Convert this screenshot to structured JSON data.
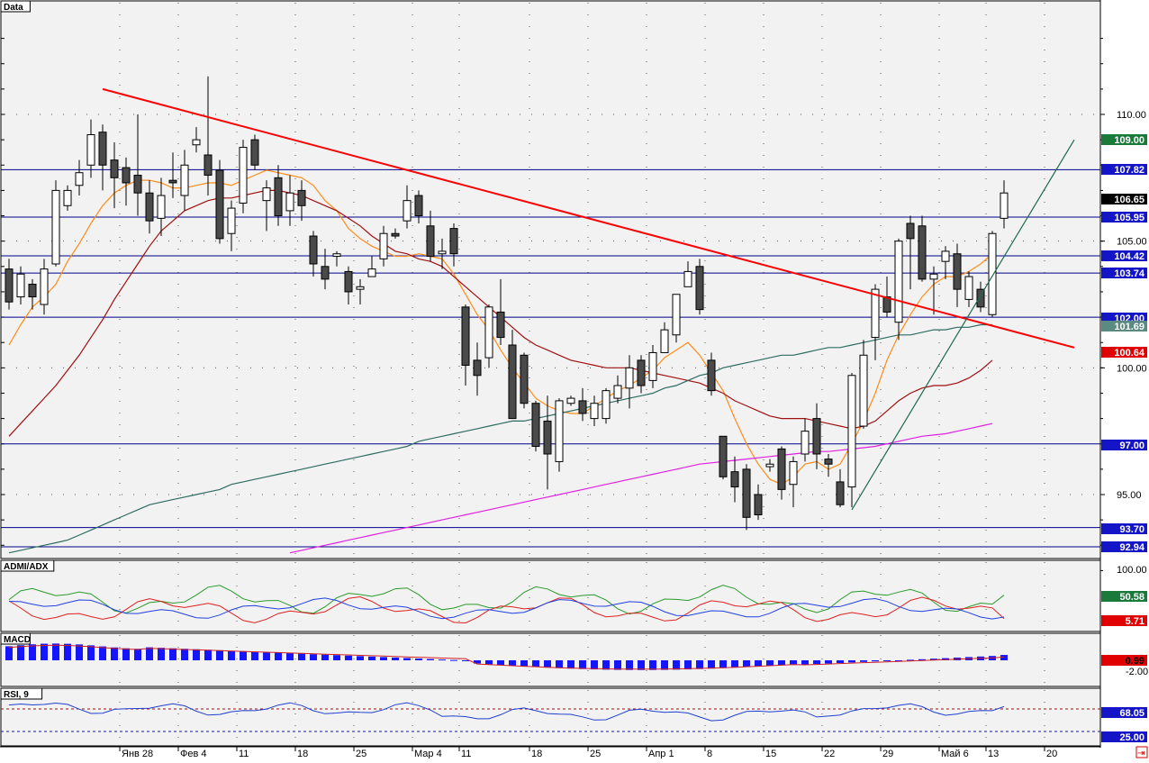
{
  "colors": {
    "plot_bg": "#f2f2f2",
    "frame": "#000000",
    "hline": "#00008b",
    "bull_fill": "#ffffff",
    "bear_fill": "#4a4a4a",
    "trend_red": "#ff0000",
    "trend_green": "#1e6b4a",
    "ma_fast": "#ff8c1a",
    "ma_mid": "#a01010",
    "ma_slow": "#2e6b62",
    "ma_long": "#e020e0",
    "dmi_plus": "#2a9a2a",
    "dmi_minus": "#e02020",
    "adx": "#2040e0",
    "macd_hist": "#1515ff",
    "macd_signal": "#d02020",
    "rsi_line": "#2040d0",
    "rsi_ref": "#c00000"
  },
  "panels": {
    "price_label": "Data",
    "dmi_label": "ADMI/ADX",
    "macd_label": "MACD",
    "rsi_label": "RSI, 9"
  },
  "x_labels": [
    "Янв 28",
    "Фев 4",
    "11",
    "18",
    "25",
    "Мар 4",
    "11",
    "18",
    "25",
    "Апр 1",
    "8",
    "15",
    "22",
    "29",
    "Май 6",
    "13",
    "20"
  ],
  "price_axis": {
    "ticks": [
      "110.00",
      "105.00",
      "100.00",
      "95.00"
    ],
    "hlines": [
      "107.82",
      "105.95",
      "104.42",
      "103.74",
      "102.00",
      "97.00",
      "93.70",
      "92.94"
    ]
  },
  "price_tags": [
    {
      "text": "109.00",
      "bg": "#1a7a3a",
      "fg": "#ffffff"
    },
    {
      "text": "107.82",
      "bg": "#1515c8",
      "fg": "#ffffff"
    },
    {
      "text": "106.65",
      "bg": "#000000",
      "fg": "#ffffff"
    },
    {
      "text": "105.95",
      "bg": "#1515c8",
      "fg": "#ffffff"
    },
    {
      "text": "104.42",
      "bg": "#1515c8",
      "fg": "#ffffff"
    },
    {
      "text": "103.74",
      "bg": "#1515c8",
      "fg": "#ffffff"
    },
    {
      "text": "102.00",
      "bg": "#1515c8",
      "fg": "#ffffff"
    },
    {
      "text": "101.69",
      "bg": "#5a8a80",
      "fg": "#ffffff"
    },
    {
      "text": "100.64",
      "bg": "#e00000",
      "fg": "#ffffff"
    },
    {
      "text": "97.00",
      "bg": "#1515c8",
      "fg": "#ffffff"
    },
    {
      "text": "93.70",
      "bg": "#1515c8",
      "fg": "#ffffff"
    },
    {
      "text": "92.94",
      "bg": "#1515c8",
      "fg": "#ffffff"
    }
  ],
  "dmi_axis": {
    "ticks": [
      "100.00"
    ],
    "tags": [
      {
        "text": "50.58",
        "bg": "#1a7a3a",
        "fg": "#ffffff"
      },
      {
        "text": "5.71",
        "bg": "#e00000",
        "fg": "#ffffff"
      }
    ]
  },
  "macd_axis": {
    "ticks": [
      "-2.00"
    ],
    "tags": [
      {
        "text": "0.99",
        "bg": "#e00000",
        "fg": "#000000"
      }
    ]
  },
  "rsi_axis": {
    "ticks": [],
    "tags": [
      {
        "text": "68.05",
        "bg": "#1515c8",
        "fg": "#ffffff"
      },
      {
        "text": "25.00",
        "bg": "#1515c8",
        "fg": "#ffffff"
      }
    ]
  },
  "chart_data": {
    "type": "candlestick",
    "title": "",
    "x_period": "daily",
    "x_axis_labels": [
      "Янв 28",
      "Фев 4",
      "11",
      "18",
      "25",
      "Мар 4",
      "11",
      "18",
      "25",
      "Апр 1",
      "8",
      "15",
      "22",
      "29",
      "Май 6",
      "13",
      "20"
    ],
    "ylim": [
      91.5,
      114.5
    ],
    "horizontal_levels": [
      107.82,
      105.95,
      104.42,
      103.74,
      102.0,
      97.0,
      93.7,
      92.94
    ],
    "candles": [
      [
        103.9,
        102.6,
        104.3,
        102.3
      ],
      [
        102.8,
        103.7,
        104.0,
        102.5
      ],
      [
        103.3,
        102.8,
        103.5,
        102.3
      ],
      [
        102.5,
        103.9,
        104.3,
        102.1
      ],
      [
        104.1,
        107.0,
        107.4,
        104.0
      ],
      [
        106.4,
        107.0,
        107.2,
        106.2
      ],
      [
        107.2,
        107.7,
        108.2,
        106.8
      ],
      [
        108.0,
        109.2,
        109.8,
        107.5
      ],
      [
        109.3,
        108.0,
        109.6,
        107.0
      ],
      [
        108.2,
        107.5,
        108.9,
        106.3
      ],
      [
        107.9,
        107.3,
        108.3,
        106.4
      ],
      [
        107.6,
        106.9,
        110.0,
        106.0
      ],
      [
        106.9,
        105.8,
        107.4,
        105.3
      ],
      [
        105.9,
        106.8,
        107.5,
        105.2
      ],
      [
        107.4,
        107.3,
        108.5,
        106.7
      ],
      [
        106.8,
        108.0,
        108.6,
        106.2
      ],
      [
        108.8,
        109.0,
        109.5,
        108.5
      ],
      [
        108.4,
        107.6,
        111.5,
        106.8
      ],
      [
        107.8,
        105.1,
        108.2,
        104.9
      ],
      [
        105.3,
        106.3,
        106.6,
        104.6
      ],
      [
        106.5,
        108.7,
        109.0,
        106.1
      ],
      [
        109.0,
        108.0,
        109.2,
        107.8
      ],
      [
        106.6,
        107.1,
        107.4,
        105.4
      ],
      [
        107.5,
        106.0,
        108.0,
        105.6
      ],
      [
        106.2,
        106.9,
        107.6,
        105.6
      ],
      [
        107.0,
        106.4,
        107.4,
        105.8
      ],
      [
        105.2,
        104.1,
        105.4,
        103.6
      ],
      [
        104.0,
        103.5,
        104.7,
        103.1
      ],
      [
        104.4,
        104.5,
        104.6,
        104.0
      ],
      [
        103.8,
        103.0,
        104.0,
        102.5
      ],
      [
        103.1,
        103.2,
        103.5,
        102.5
      ],
      [
        103.6,
        103.9,
        104.4,
        103.7
      ],
      [
        104.3,
        105.3,
        105.6,
        104.0
      ],
      [
        105.3,
        105.2,
        105.5,
        105.1
      ],
      [
        105.8,
        106.6,
        107.2,
        105.5
      ],
      [
        106.8,
        106.0,
        107.0,
        105.7
      ],
      [
        105.6,
        104.4,
        106.2,
        104.2
      ],
      [
        104.5,
        104.6,
        105.1,
        103.9
      ],
      [
        105.5,
        104.5,
        105.7,
        104.0
      ],
      [
        102.4,
        100.1,
        102.5,
        99.3
      ],
      [
        100.3,
        99.7,
        101.0,
        98.9
      ],
      [
        100.4,
        102.4,
        102.5,
        100.0
      ],
      [
        102.2,
        101.2,
        103.5,
        100.9
      ],
      [
        100.9,
        98.0,
        101.5,
        98.0
      ],
      [
        100.5,
        98.6,
        100.6,
        98.4
      ],
      [
        98.6,
        96.9,
        98.7,
        96.7
      ],
      [
        97.9,
        96.6,
        98.9,
        95.2
      ],
      [
        96.3,
        98.7,
        98.8,
        95.9
      ],
      [
        98.6,
        98.8,
        98.9,
        98.5
      ],
      [
        98.7,
        98.2,
        99.2,
        97.9
      ],
      [
        98.0,
        98.6,
        98.9,
        97.7
      ],
      [
        98.0,
        99.1,
        99.2,
        97.8
      ],
      [
        98.8,
        99.3,
        99.7,
        98.6
      ],
      [
        99.2,
        100.0,
        100.5,
        98.4
      ],
      [
        100.3,
        99.3,
        100.5,
        99.0
      ],
      [
        99.5,
        100.6,
        100.9,
        99.2
      ],
      [
        100.6,
        101.5,
        101.8,
        100.6
      ],
      [
        101.3,
        102.9,
        102.9,
        101.0
      ],
      [
        103.2,
        103.8,
        104.2,
        103.2
      ],
      [
        104.0,
        102.3,
        104.3,
        102.1
      ],
      [
        100.3,
        99.1,
        100.6,
        98.9
      ],
      [
        97.3,
        95.7,
        97.3,
        95.6
      ],
      [
        95.9,
        95.3,
        96.5,
        94.7
      ],
      [
        96.0,
        94.1,
        96.2,
        93.6
      ],
      [
        95.0,
        94.2,
        95.4,
        94.0
      ],
      [
        96.1,
        96.2,
        96.4,
        95.9
      ],
      [
        96.8,
        95.2,
        96.9,
        94.8
      ],
      [
        95.4,
        96.3,
        96.5,
        94.5
      ],
      [
        96.6,
        97.5,
        98.0,
        96.3
      ],
      [
        98.0,
        96.6,
        98.6,
        96.0
      ],
      [
        96.4,
        96.2,
        96.6,
        95.7
      ],
      [
        95.5,
        94.6,
        96.0,
        94.5
      ],
      [
        95.3,
        99.7,
        99.8,
        94.5
      ],
      [
        97.7,
        100.5,
        101.1,
        97.6
      ],
      [
        101.2,
        103.1,
        103.3,
        100.3
      ],
      [
        102.8,
        102.2,
        103.6,
        102.0
      ],
      [
        101.8,
        105.0,
        105.1,
        101.1
      ],
      [
        105.7,
        105.1,
        106.0,
        103.1
      ],
      [
        105.6,
        103.5,
        106.0,
        103.4
      ],
      [
        103.5,
        103.7,
        104.0,
        102.1
      ],
      [
        104.2,
        104.6,
        104.8,
        103.5
      ],
      [
        104.5,
        103.1,
        104.9,
        102.4
      ],
      [
        102.7,
        103.6,
        103.8,
        102.4
      ],
      [
        103.1,
        102.4,
        103.4,
        102.2
      ],
      [
        102.1,
        105.3,
        105.4,
        102.0
      ],
      [
        105.9,
        106.9,
        107.4,
        105.5
      ]
    ],
    "series": [
      {
        "name": "",
        "values": [
          96.5,
          97.0,
          97.4,
          97.9,
          98.3,
          98.8,
          99.3,
          99.8,
          100.5,
          101.3,
          102.3,
          103.4,
          104.4,
          105.2,
          105.8,
          106.2,
          106.5,
          106.7,
          106.8,
          106.8,
          106.9,
          107.0,
          107.1,
          107.0,
          106.9,
          106.7,
          106.4,
          106.0,
          105.6,
          105.2,
          104.9,
          104.6,
          104.5,
          104.4,
          104.5,
          104.4,
          104.3,
          104.0,
          103.6,
          103.0,
          102.4,
          101.7,
          101.1,
          100.6,
          100.3,
          100.0,
          99.8,
          99.7,
          99.6,
          99.5,
          99.4,
          99.4,
          99.4,
          99.6,
          99.6,
          99.5,
          99.4,
          99.2,
          99.1,
          98.9,
          98.7,
          98.5,
          98.4,
          98.3,
          98.2,
          98.2,
          98.3,
          98.3,
          98.3,
          98.4,
          98.6,
          98.8,
          99.0,
          99.3,
          99.7,
          100.1,
          100.6,
          100.9,
          101.1,
          101.2,
          101.3,
          101.3,
          101.5,
          101.9,
          102.6
        ]
      }
    ],
    "ma_series": [
      {
        "role": "fast",
        "values": [
          100.9,
          101.7,
          102.4,
          102.8,
          103.3,
          104.2,
          104.9,
          105.7,
          106.4,
          106.9,
          107.2,
          107.4,
          107.4,
          107.3,
          107.1,
          107.1,
          107.2,
          107.3,
          107.3,
          107.2,
          107.4,
          107.6,
          107.8,
          107.7,
          107.6,
          107.5,
          107.2,
          106.6,
          106.2,
          105.5,
          105.1,
          104.8,
          104.6,
          104.4,
          104.4,
          104.5,
          104.4,
          104.3,
          103.7,
          102.9,
          102.1,
          101.5,
          100.7,
          100.0,
          99.4,
          98.8,
          98.5,
          98.3,
          98.2,
          98.2,
          98.5,
          98.8,
          99.1,
          99.3,
          99.6,
          99.9,
          100.4,
          100.7,
          101.0,
          100.5,
          99.8,
          99.1,
          98.0,
          97.0,
          96.2,
          95.6,
          95.4,
          95.7,
          96.2,
          96.3,
          96.0,
          96.2,
          97.0,
          97.9,
          99.0,
          100.3,
          101.3,
          102.1,
          102.8,
          103.3,
          103.6,
          103.6,
          103.8,
          104.1,
          104.5
        ]
      },
      {
        "role": "mid",
        "values": [
          97.3,
          97.8,
          98.3,
          98.8,
          99.3,
          99.9,
          100.5,
          101.2,
          101.9,
          102.7,
          103.4,
          104.1,
          104.8,
          105.4,
          105.8,
          106.2,
          106.4,
          106.6,
          106.7,
          106.7,
          106.8,
          106.9,
          107.0,
          107.0,
          106.9,
          106.8,
          106.6,
          106.4,
          106.2,
          105.9,
          105.6,
          105.2,
          104.9,
          104.6,
          104.5,
          104.3,
          104.2,
          104.0,
          103.6,
          103.2,
          102.8,
          102.4,
          102.0,
          101.6,
          101.2,
          100.9,
          100.7,
          100.5,
          100.3,
          100.2,
          100.1,
          100.0,
          100.0,
          100.0,
          99.9,
          99.8,
          99.7,
          99.6,
          99.5,
          99.4,
          99.2,
          99.0,
          98.7,
          98.5,
          98.3,
          98.1,
          98.0,
          98.0,
          98.0,
          97.9,
          97.8,
          97.7,
          97.6,
          97.7,
          97.9,
          98.3,
          98.7,
          99.0,
          99.2,
          99.3,
          99.3,
          99.4,
          99.6,
          99.9,
          100.3
        ]
      },
      {
        "role": "slow",
        "values": [
          92.7,
          92.8,
          92.9,
          93.0,
          93.1,
          93.2,
          93.4,
          93.6,
          93.8,
          94.0,
          94.2,
          94.4,
          94.6,
          94.7,
          94.8,
          94.9,
          95.0,
          95.1,
          95.2,
          95.4,
          95.5,
          95.6,
          95.7,
          95.8,
          95.9,
          96.0,
          96.1,
          96.2,
          96.3,
          96.4,
          96.5,
          96.6,
          96.7,
          96.8,
          96.9,
          97.1,
          97.2,
          97.3,
          97.4,
          97.5,
          97.6,
          97.7,
          97.8,
          97.9,
          97.9,
          98.0,
          98.1,
          98.2,
          98.3,
          98.4,
          98.5,
          98.6,
          98.7,
          98.8,
          98.9,
          99.0,
          99.2,
          99.3,
          99.5,
          99.7,
          99.8,
          100.0,
          100.1,
          100.2,
          100.3,
          100.4,
          100.5,
          100.5,
          100.6,
          100.7,
          100.8,
          100.8,
          100.9,
          101.0,
          101.1,
          101.2,
          101.3,
          101.3,
          101.4,
          101.5,
          101.5,
          101.6,
          101.6,
          101.7,
          101.7
        ]
      },
      {
        "role": "long",
        "values": [
          null,
          null,
          null,
          null,
          null,
          null,
          null,
          null,
          null,
          null,
          null,
          null,
          null,
          null,
          null,
          null,
          null,
          null,
          null,
          null,
          null,
          null,
          null,
          null,
          92.7,
          92.8,
          92.9,
          93.0,
          93.1,
          93.2,
          93.3,
          93.4,
          93.5,
          93.6,
          93.7,
          93.8,
          93.9,
          94.0,
          94.1,
          94.2,
          94.3,
          94.4,
          94.5,
          94.6,
          94.7,
          94.8,
          94.9,
          95.0,
          95.1,
          95.2,
          95.3,
          95.4,
          95.5,
          95.6,
          95.7,
          95.8,
          95.9,
          96.0,
          96.1,
          96.2,
          96.25,
          96.3,
          96.35,
          96.4,
          96.45,
          96.5,
          96.55,
          96.6,
          96.65,
          96.7,
          96.7,
          96.75,
          96.8,
          96.85,
          96.9,
          97.0,
          97.1,
          97.2,
          97.3,
          97.35,
          97.4,
          97.5,
          97.6,
          97.7,
          97.8
        ]
      }
    ],
    "trendlines": [
      {
        "color": "red",
        "from": {
          "index": 8,
          "value": 111.0
        },
        "to": {
          "index": 91,
          "value": 100.8
        }
      },
      {
        "color": "green",
        "from": {
          "index": 72,
          "value": 94.4
        },
        "to": {
          "index": 91,
          "value": 109.0
        }
      }
    ],
    "indicators": {
      "dmi": {
        "ylim": [
          0,
          100
        ],
        "plus_di_last": 50.58,
        "minus_di_last": 5.71
      },
      "macd": {
        "last": 0.99,
        "tick": -2.0
      },
      "rsi": {
        "period": 9,
        "last": 68.05,
        "lower_level": 25.0
      }
    }
  }
}
